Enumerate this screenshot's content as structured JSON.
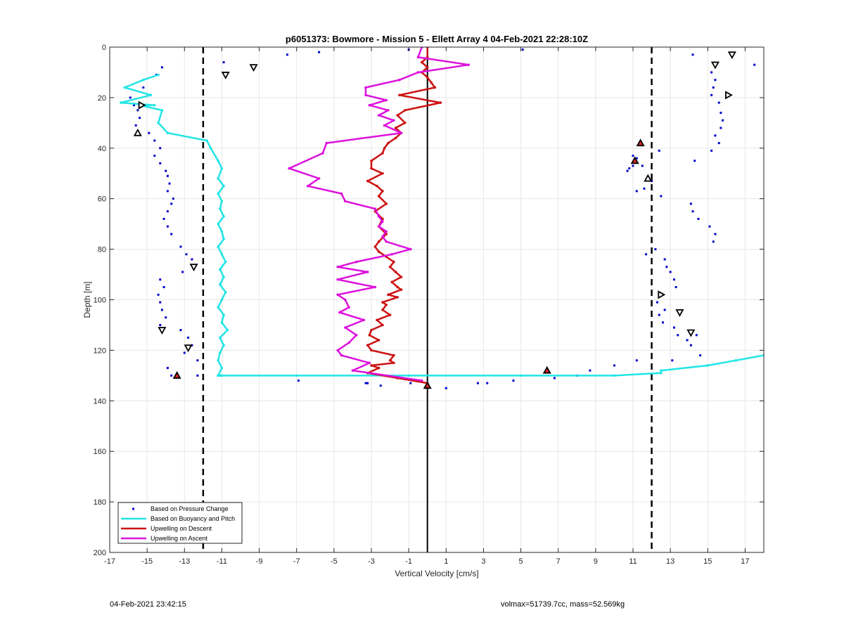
{
  "footer": {
    "left": "04-Feb-2021 23:42:15",
    "right": "volmax=51739.7cc, mass=52.569kg"
  },
  "colors": {
    "pressure": "#0000cc",
    "buoyancy": "#22e5e5",
    "descent": "#cc1111",
    "ascent": "#dd11dd",
    "marker_fill": "#dd2222"
  },
  "chart_data": {
    "type": "scatter",
    "title": "p6051373: Bowmore - Mission 5 - Ellett Array 4 04-Feb-2021 22:28:10Z",
    "xlabel": "Vertical Velocity [cm/s]",
    "ylabel": "Depth [m]",
    "xlim": [
      -17,
      18
    ],
    "ylim": [
      0,
      200
    ],
    "y_reversed": true,
    "xticks": [
      -17,
      -15,
      -13,
      -11,
      -9,
      -7,
      -5,
      -3,
      -1,
      1,
      3,
      5,
      7,
      9,
      11,
      13,
      15,
      17
    ],
    "yticks": [
      0,
      20,
      40,
      60,
      80,
      100,
      120,
      140,
      160,
      180,
      200
    ],
    "grid": true,
    "legend_placement": "bottom-left",
    "legend": [
      "Based on Pressure Change",
      "Based on Buoyancy and Pitch",
      "Upwelling on Descent",
      "Upwelling on Ascent"
    ],
    "reference_lines": {
      "solid_x": [
        0
      ],
      "dashed_x": [
        -12,
        12
      ]
    },
    "series": [
      {
        "name": "Based on Pressure Change",
        "style": "dots",
        "x": [
          -14.2,
          -10.9,
          -7.5,
          -5.8,
          -1,
          5.1,
          -14.5,
          -15.2,
          -15.9,
          -15.7,
          -15.5,
          -15.4,
          -15.6,
          -14.9,
          -14.6,
          -14.3,
          -14.6,
          -14.3,
          -14.0,
          -13.9,
          -13.8,
          -13.9,
          -13.6,
          -13.7,
          -13.9,
          -14.1,
          -13.9,
          -13.7,
          -13.2,
          -12.9,
          -12.6,
          -13.1,
          -14.3,
          -14.1,
          -14.4,
          -14.3,
          -14.2,
          -14.0,
          -14.3,
          -13.2,
          -12.8,
          -12.6,
          -13.0,
          -12.3,
          -13.9,
          -13.7,
          -12.3,
          -6.9,
          -3.3,
          -3.2,
          -2.5,
          -0.9,
          1.0,
          2.7,
          3.2,
          4.6,
          6.8,
          8.0,
          8.7,
          10.0,
          14.2,
          17.5,
          15.2,
          15.4,
          15.3,
          15.2,
          15.6,
          15.7,
          15.8,
          15.7,
          15.4,
          15.6,
          15.2,
          14.3,
          12.4,
          11.0,
          10.8,
          10.7,
          11.5,
          11.2,
          11.0,
          12.0,
          11.6,
          12.5,
          11.2,
          14.1,
          14.2,
          14.5,
          15.1,
          15.4,
          15.3,
          11.7,
          12.2,
          12.7,
          12.8,
          13.0,
          13.2,
          13.3,
          12.6,
          12.3,
          12.7,
          12.4,
          12.6,
          13.2,
          13.4,
          13.9,
          14.1,
          14.6,
          14.4,
          13.1,
          11.2
        ],
        "y": [
          8,
          6,
          3,
          2,
          1,
          1,
          11,
          16,
          20,
          23,
          25,
          28,
          31,
          34,
          37,
          40,
          43,
          46,
          49,
          51,
          54,
          57,
          60,
          62,
          65,
          68,
          71,
          74,
          79,
          82,
          84,
          89,
          92,
          95,
          98,
          101,
          104,
          107,
          110,
          112,
          115,
          118,
          121,
          124,
          127,
          130,
          130,
          132,
          133,
          133,
          134,
          133,
          135,
          133,
          133,
          132,
          131,
          130,
          128,
          126,
          3,
          7,
          10,
          13,
          16,
          19,
          22,
          26,
          29,
          32,
          35,
          38,
          41,
          45,
          41,
          47,
          48,
          49,
          47,
          44,
          43,
          53,
          56,
          59,
          57,
          62,
          65,
          68,
          71,
          74,
          77,
          82,
          80,
          84,
          87,
          89,
          92,
          95,
          98,
          101,
          104,
          106,
          109,
          111,
          114,
          116,
          118,
          122,
          114,
          124,
          124
        ]
      },
      {
        "name": "Based on Buoyancy and Pitch",
        "style": "line",
        "x": [
          -14.4,
          -15.2,
          -16.2,
          -14.8,
          -16.4,
          -14.6,
          -15.4,
          -14.2,
          -14.4,
          -13.9,
          -11.8,
          -11.6,
          -11.2,
          -11.0,
          -11.2,
          -10.9,
          -11.2,
          -11.0,
          -11.1,
          -10.9,
          -11.2,
          -11.0,
          -10.9,
          -11.2,
          -11.0,
          -10.8,
          -11.1,
          -10.9,
          -11.1,
          -10.8,
          -11.0,
          -11.2,
          -10.9,
          -11.0,
          -10.7,
          -11.1,
          -10.9,
          -11.1,
          -11.2,
          -11.0,
          -11.2,
          -11.0,
          -11.1,
          -11.0,
          -11.2,
          -11.0,
          -11.2,
          -11.0,
          -7.0,
          -1.0,
          5.0,
          10.0,
          12.5,
          12.5,
          15.0,
          16.5,
          18.0
        ],
        "y": [
          11,
          13,
          16,
          19,
          22,
          23,
          23,
          25,
          30,
          34,
          37,
          40,
          45,
          48,
          52,
          55,
          58,
          61,
          64,
          67,
          70,
          73,
          76,
          79,
          82,
          85,
          88,
          91,
          94,
          97,
          100,
          103,
          106,
          109,
          112,
          115,
          118,
          121,
          124,
          127,
          130,
          130,
          130,
          130,
          130,
          130,
          130,
          130,
          130,
          130,
          130,
          130,
          129,
          128,
          126,
          124,
          122
        ]
      },
      {
        "name": "Upwelling on Descent",
        "style": "line",
        "x": [
          0,
          0,
          -0.3,
          0,
          -0.3,
          0,
          0.2,
          0.4,
          -1.5,
          0.7,
          -1.2,
          -1.6,
          -1.2,
          -1.7,
          -1.4,
          -1.7,
          -2.1,
          -2.3,
          -2.4,
          -3.0,
          -3.0,
          -2.4,
          -3.2,
          -2.7,
          -2.4,
          -2.6,
          -2.2,
          -2.8,
          -2.4,
          -2.6,
          -2.2,
          -2.6,
          -2.8,
          -2.6,
          -2.2,
          -1.8,
          -2.0,
          -1.7,
          -1.4,
          -1.9,
          -1.6,
          -1.4,
          -2.1,
          -1.6,
          -2.4,
          -2.2,
          -2.4,
          -2.0,
          -2.7,
          -2.4,
          -3.0,
          -3.1,
          -2.6,
          -3.2,
          -3.0,
          -1.8,
          -2.0,
          -1.8,
          -3.0,
          -2.6,
          -3.2,
          -1.6,
          0,
          0
        ],
        "y": [
          0,
          4,
          6,
          8,
          10,
          12,
          14,
          16,
          19,
          22,
          25,
          27,
          30,
          32,
          34,
          36,
          38,
          40,
          42,
          45,
          48,
          50,
          53,
          55,
          57,
          59,
          62,
          65,
          68,
          71,
          74,
          77,
          79,
          81,
          83,
          85,
          87,
          89,
          91,
          93,
          95,
          96,
          98,
          99,
          101,
          102,
          104,
          106,
          108,
          110,
          112,
          114,
          116,
          118,
          120,
          122,
          124,
          125,
          126,
          127,
          129,
          131,
          133,
          134
        ]
      },
      {
        "name": "Upwelling on Ascent",
        "style": "line",
        "x": [
          -0.3,
          -0.5,
          2.2,
          -0.5,
          -1.5,
          -3.3,
          -3.3,
          -2.2,
          -3.1,
          -2.1,
          -2.6,
          -1.8,
          -2.3,
          -1.4,
          -5.4,
          -5.6,
          -7.4,
          -5.8,
          -6.4,
          -4.6,
          -4.4,
          -2.8,
          -2.6,
          -2.4,
          -2.6,
          -2.2,
          -2.4,
          -2.2,
          -0.9,
          -1.9,
          -3.8,
          -4.8,
          -3.2,
          -4.8,
          -2.8,
          -4.8,
          -4.4,
          -4.2,
          -4.7,
          -3.4,
          -4.4,
          -3.8,
          -4.2,
          -4.8,
          -4.6,
          -3.1,
          -4.0,
          -0.3
        ],
        "y": [
          0,
          4,
          7,
          10,
          13,
          16,
          19,
          21,
          23,
          25,
          27,
          29,
          31,
          34,
          38,
          42,
          48,
          52,
          55,
          58,
          61,
          64,
          67,
          69,
          71,
          73,
          75,
          77,
          80,
          82,
          85,
          87,
          89,
          92,
          95,
          98,
          100,
          103,
          105,
          108,
          111,
          114,
          117,
          120,
          122,
          125,
          128,
          132
        ]
      }
    ],
    "markers": {
      "down_triangles": {
        "x": [
          -10.8,
          -9.3,
          -12.5,
          -14.2,
          -12.8,
          16.3,
          15.4,
          13.5,
          14.1
        ],
        "y": [
          11,
          8,
          87,
          112,
          119,
          3,
          7,
          105,
          113
        ]
      },
      "right_triangles": {
        "x": [
          -15.3,
          16.1,
          12.5
        ],
        "y": [
          23,
          19,
          98
        ]
      },
      "up_triangles": {
        "x": [
          -15.5,
          11.8
        ],
        "y": [
          34,
          52
        ]
      },
      "red_up_triangles": {
        "x": [
          11.4,
          11.1,
          6.4,
          -13.4,
          0
        ],
        "y": [
          38,
          45,
          128,
          130,
          134
        ]
      }
    }
  }
}
